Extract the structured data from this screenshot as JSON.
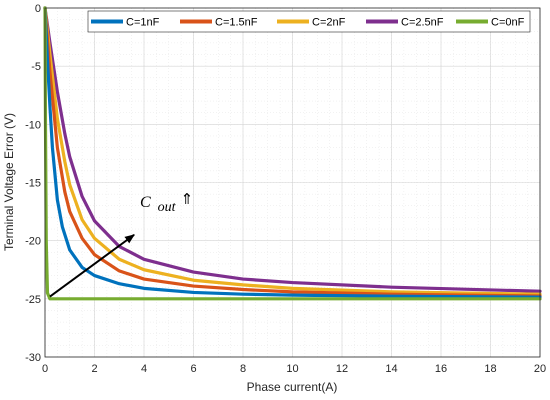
{
  "chart_data": {
    "type": "line",
    "title": "",
    "xlabel": "Phase current(A)",
    "ylabel": "Terminal Voltage Error (V)",
    "xlim": [
      0,
      20
    ],
    "ylim": [
      -30,
      0
    ],
    "xticks": [
      0,
      2,
      4,
      6,
      8,
      10,
      12,
      14,
      16,
      18,
      20
    ],
    "yticks": [
      0,
      -5,
      -10,
      -15,
      -20,
      -25,
      -30
    ],
    "grid": true,
    "minor_grid": true,
    "legend_position": "top",
    "series": [
      {
        "name": "C=1nF",
        "color": "#0072BD",
        "x": [
          0,
          0.1,
          0.2,
          0.3,
          0.5,
          0.7,
          1.0,
          1.5,
          2.0,
          3.0,
          4.0,
          6.0,
          8.0,
          10.0,
          14.0,
          20.0
        ],
        "y": [
          0,
          -4.5,
          -8.5,
          -12.0,
          -16.5,
          -18.8,
          -20.8,
          -22.3,
          -23.0,
          -23.7,
          -24.1,
          -24.45,
          -24.6,
          -24.68,
          -24.78,
          -24.85
        ]
      },
      {
        "name": "C=1.5nF",
        "color": "#D95319",
        "x": [
          0,
          0.2,
          0.5,
          0.8,
          1.0,
          1.5,
          2.0,
          3.0,
          4.0,
          6.0,
          8.0,
          10.0,
          14.0,
          20.0
        ],
        "y": [
          0,
          -5.5,
          -12.0,
          -15.8,
          -17.5,
          -19.8,
          -21.2,
          -22.6,
          -23.3,
          -23.9,
          -24.2,
          -24.4,
          -24.6,
          -24.75
        ]
      },
      {
        "name": "C=2nF",
        "color": "#EDB120",
        "x": [
          0,
          0.2,
          0.5,
          0.8,
          1.0,
          1.5,
          2.0,
          3.0,
          4.0,
          6.0,
          8.0,
          10.0,
          14.0,
          20.0
        ],
        "y": [
          0,
          -4.0,
          -9.5,
          -13.2,
          -15.2,
          -18.2,
          -19.8,
          -21.6,
          -22.5,
          -23.4,
          -23.8,
          -24.1,
          -24.4,
          -24.6
        ]
      },
      {
        "name": "C=2.5nF",
        "color": "#7E2F8E",
        "x": [
          0,
          0.2,
          0.5,
          0.8,
          1.0,
          1.5,
          2.0,
          3.0,
          4.0,
          6.0,
          8.0,
          10.0,
          14.0,
          20.0
        ],
        "y": [
          0,
          -3.0,
          -7.2,
          -10.8,
          -12.8,
          -16.2,
          -18.3,
          -20.5,
          -21.6,
          -22.7,
          -23.3,
          -23.6,
          -24.0,
          -24.35
        ]
      },
      {
        "name": "C=0nF",
        "color": "#77AC30",
        "x": [
          0,
          0.02,
          0.05,
          0.1,
          0.2,
          20.0
        ],
        "y": [
          0,
          -10.0,
          -20.0,
          -24.5,
          -25.0,
          -25.0
        ]
      }
    ],
    "annotations": [
      {
        "text": "C",
        "subscript": "out",
        "symbol": "⇑",
        "arrow_from": [
          0.2,
          -24.8
        ],
        "arrow_to": [
          3.6,
          -19.5
        ]
      }
    ]
  }
}
